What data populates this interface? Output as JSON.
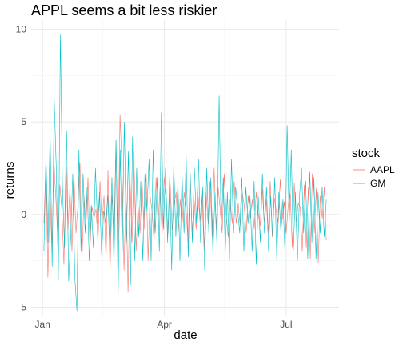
{
  "chart_data": {
    "type": "line",
    "title": "APPL seems a bit less riskier",
    "xlabel": "date",
    "ylabel": "returns",
    "x_start": "2020-01-02",
    "x_end": "2020-07-31",
    "x_ticks": [
      {
        "label": "Jan",
        "date": "2020-01-01"
      },
      {
        "label": "Apr",
        "date": "2020-04-01"
      },
      {
        "label": "Jul",
        "date": "2020-07-01"
      }
    ],
    "x_minor_ticks": [
      "2020-02-15",
      "2020-05-16"
    ],
    "ylim": [
      -5.5,
      10.5
    ],
    "y_ticks": [
      -5,
      0,
      5,
      10
    ],
    "y_minor_ticks": [
      -2.5,
      2.5,
      7.5
    ],
    "grid": true,
    "legend": {
      "title": "stock",
      "position": "right"
    },
    "series": [
      {
        "name": "AAPL",
        "color": "#F8766D",
        "values": [
          -0.5,
          2.8,
          -3.4,
          1.2,
          -2.0,
          2.9,
          0.8,
          -1.5,
          1.6,
          0.2,
          -2.7,
          3.0,
          -0.8,
          1.5,
          -2.0,
          2.2,
          -1.0,
          0.5,
          2.8,
          -2.5,
          1.0,
          -0.6,
          2.0,
          -1.8,
          0.4,
          -0.2,
          0.3,
          -1.5,
          1.8,
          -0.5,
          1.0,
          -2.5,
          2.4,
          -3.2,
          1.0,
          -1.0,
          4.0,
          -2.2,
          5.4,
          2.5,
          -3.0,
          1.5,
          -4.2,
          2.0,
          -1.5,
          3.0,
          -2.0,
          0.5,
          -1.0,
          1.8,
          -0.8,
          2.5,
          -2.5,
          1.0,
          0.2,
          -1.5,
          2.0,
          -0.5,
          1.5,
          -1.2,
          2.0,
          0.8,
          -1.0,
          1.8,
          -0.8,
          0.5,
          1.2,
          -1.0,
          0.8,
          -0.5,
          1.2,
          0.2,
          -1.5,
          2.3,
          -1.0,
          0.8,
          -0.8,
          1.0,
          -0.4,
          1.0,
          -2.0,
          1.2,
          -0.5,
          1.8,
          -1.2,
          2.5,
          -0.8,
          1.5,
          0.3,
          -1.0,
          2.2,
          0.0,
          -1.2,
          0.8,
          -0.5,
          1.8,
          -0.5,
          0.6,
          -0.6,
          1.2,
          0.5,
          -1.0,
          1.0,
          -0.2,
          0.8,
          -0.8,
          1.2,
          0.0,
          -0.6,
          1.4,
          -0.4,
          0.8,
          -1.0,
          1.8,
          -1.2,
          0.9,
          0.2,
          -0.5,
          1.9,
          -0.3,
          0.7,
          -1.0,
          0.5,
          1.2,
          -1.8,
          1.7,
          -0.4,
          0.6,
          0.4,
          -2.0,
          1.6,
          -1.8,
          1.5,
          -2.4,
          2.2,
          -1.0,
          1.4,
          -2.6,
          1.0,
          -0.2,
          1.5,
          -1.4
        ]
      },
      {
        "name": "GM",
        "color": "#00BFC4",
        "values": [
          -2.0,
          3.2,
          -1.5,
          4.5,
          -2.8,
          6.2,
          2.5,
          -3.5,
          9.7,
          1.5,
          -1.8,
          4.5,
          -3.6,
          -1.2,
          2.2,
          -3.4,
          -5.2,
          3.5,
          -2.0,
          2.2,
          -1.0,
          1.5,
          -2.5,
          0.5,
          -1.8,
          2.5,
          -0.5,
          1.2,
          -2.2,
          0.2,
          -0.5,
          1.0,
          -2.0,
          2.0,
          -2.8,
          4.0,
          -4.4,
          3.5,
          -2.0,
          5.0,
          -1.5,
          3.4,
          -3.8,
          4.2,
          -2.5,
          2.5,
          -1.2,
          1.8,
          -2.5,
          2.2,
          0.2,
          3.0,
          -2.5,
          3.5,
          -1.0,
          2.0,
          -2.0,
          5.5,
          -0.8,
          2.5,
          -1.5,
          2.0,
          -3.0,
          2.8,
          -1.2,
          1.8,
          -2.5,
          2.2,
          -1.0,
          3.2,
          -2.3,
          2.2,
          -1.5,
          2.5,
          -0.5,
          3.0,
          -1.5,
          1.5,
          -3.0,
          2.5,
          -1.0,
          2.0,
          -2.2,
          1.2,
          -1.8,
          6.4,
          -0.8,
          2.0,
          -2.0,
          1.2,
          -2.5,
          3.0,
          -1.0,
          1.5,
          0.2,
          -1.0,
          2.0,
          -2.0,
          1.5,
          -0.5,
          1.0,
          -2.0,
          1.8,
          -2.7,
          1.0,
          -1.5,
          2.2,
          -1.0,
          1.5,
          -2.0,
          1.0,
          -1.2,
          2.0,
          -2.5,
          1.2,
          -1.0,
          0.8,
          -2.2,
          4.8,
          -0.5,
          3.5,
          -2.0,
          1.2,
          -2.5,
          1.0,
          2.5,
          -1.0,
          1.8,
          -2.4,
          2.3,
          -1.5,
          2.0,
          -2.4,
          1.2,
          -1.0,
          1.5,
          -1.2,
          0.8
        ]
      }
    ]
  }
}
